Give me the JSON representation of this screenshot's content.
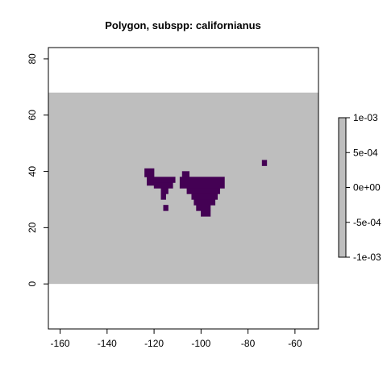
{
  "chart_data": {
    "type": "heatmap",
    "title": "Polygon, subspp: californianus",
    "xlabel": "",
    "ylabel": "",
    "xlim": [
      -165,
      -50
    ],
    "ylim": [
      -16,
      84
    ],
    "x_ticks": [
      "-160",
      "-140",
      "-120",
      "-100",
      "-80",
      "-60"
    ],
    "x_tick_values": [
      -160,
      -140,
      -120,
      -100,
      -80,
      -60
    ],
    "y_ticks": [
      "0",
      "20",
      "40",
      "60",
      "80"
    ],
    "y_tick_values": [
      0,
      20,
      40,
      60,
      80
    ],
    "raster_extent": {
      "xmin": -165,
      "xmax": -50,
      "ymin": 0,
      "ymax": 68
    },
    "background_value": 0,
    "background_color": "#bebebe",
    "presence_color": "#440154",
    "presence_cells": [
      [
        -124,
        38,
        4,
        3
      ],
      [
        -123,
        35,
        3,
        3
      ],
      [
        -120,
        36,
        9,
        2
      ],
      [
        -120,
        34,
        8,
        2
      ],
      [
        -117,
        32,
        3,
        2
      ],
      [
        -117,
        30,
        2,
        2
      ],
      [
        -116,
        26,
        2,
        2
      ],
      [
        -108,
        36,
        3,
        4
      ],
      [
        -109,
        34,
        19,
        4
      ],
      [
        -106,
        32,
        14,
        2
      ],
      [
        -104,
        30,
        11,
        2
      ],
      [
        -103,
        28,
        9,
        2
      ],
      [
        -102,
        26,
        6,
        2
      ],
      [
        -100,
        24,
        4,
        2
      ],
      [
        -74,
        42,
        2,
        2
      ]
    ],
    "legend": {
      "placement": "right",
      "labels": [
        "1e-03",
        "5e-04",
        "0e+00",
        "-5e-04",
        "-1e-03"
      ],
      "values": [
        0.001,
        0.0005,
        0,
        -0.0005,
        -0.001
      ],
      "range": [
        -0.001,
        0.001
      ],
      "color": "#bebebe"
    }
  }
}
